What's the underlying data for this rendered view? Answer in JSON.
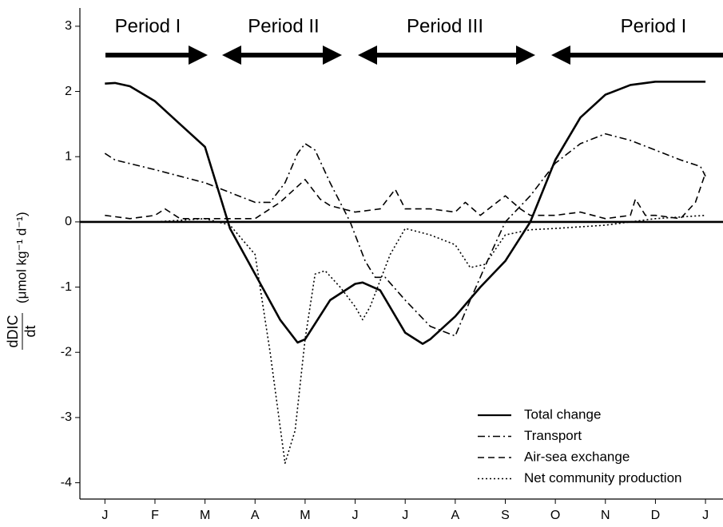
{
  "chart_data": {
    "type": "line",
    "annotations": [
      "Period I",
      "Period II",
      "Period III",
      "Period I"
    ],
    "ylabel_numerator": "dDIC",
    "ylabel_denominator": "dt",
    "ylabel_units": "(μmol kg⁻¹ d⁻¹)",
    "xlim": [
      -0.5,
      12.35
    ],
    "ylim": [
      -4.25,
      3.28
    ],
    "xticks": [
      {
        "value": 0,
        "label": "J"
      },
      {
        "value": 1,
        "label": "F"
      },
      {
        "value": 2,
        "label": "M"
      },
      {
        "value": 3,
        "label": "A"
      },
      {
        "value": 4,
        "label": "M"
      },
      {
        "value": 5,
        "label": "J"
      },
      {
        "value": 6,
        "label": "J"
      },
      {
        "value": 7,
        "label": "A"
      },
      {
        "value": 8,
        "label": "S"
      },
      {
        "value": 9,
        "label": "O"
      },
      {
        "value": 10,
        "label": "N"
      },
      {
        "value": 11,
        "label": "D"
      },
      {
        "value": 12,
        "label": "J"
      }
    ],
    "yticks": [
      -4,
      -3,
      -2,
      -1,
      0,
      1,
      2,
      3
    ],
    "hline": 0,
    "legend": "lower right",
    "series": [
      {
        "name": "Total change",
        "color": "#000000",
        "dash": "solid",
        "x": [
          0,
          0.2,
          0.5,
          1,
          1.5,
          2,
          2.5,
          3,
          3.5,
          3.85,
          4,
          4.5,
          5,
          5.15,
          5.5,
          6,
          6.35,
          6.5,
          7,
          7.5,
          8,
          8.5,
          9,
          9.5,
          10,
          10.5,
          11,
          11.5,
          12
        ],
        "values": [
          2.12,
          2.13,
          2.08,
          1.85,
          1.5,
          1.15,
          -0.1,
          -0.8,
          -1.5,
          -1.85,
          -1.8,
          -1.2,
          -0.95,
          -0.93,
          -1.05,
          -1.7,
          -1.87,
          -1.8,
          -1.45,
          -1.0,
          -0.6,
          0.0,
          0.95,
          1.6,
          1.95,
          2.1,
          2.15,
          2.15,
          2.15
        ]
      },
      {
        "name": "Transport",
        "color": "#000000",
        "dash": "dashdot",
        "x": [
          0,
          0.2,
          1,
          2,
          2.5,
          3,
          3.3,
          3.6,
          3.85,
          4,
          4.2,
          4.5,
          4.9,
          5.2,
          5.4,
          5.6,
          6,
          6.5,
          7,
          7.3,
          7.7,
          8,
          8.5,
          9,
          9.5,
          10,
          10.5,
          11,
          11.5,
          11.9,
          12
        ],
        "values": [
          1.05,
          0.95,
          0.8,
          0.6,
          0.45,
          0.3,
          0.3,
          0.6,
          1.05,
          1.2,
          1.1,
          0.6,
          0.0,
          -0.6,
          -0.85,
          -0.85,
          -1.2,
          -1.6,
          -1.75,
          -1.2,
          -0.5,
          0.0,
          0.4,
          0.9,
          1.2,
          1.35,
          1.25,
          1.1,
          0.95,
          0.85,
          0.7
        ]
      },
      {
        "name": "Air-sea exchange",
        "color": "#000000",
        "dash": "dashed",
        "x": [
          0,
          0.5,
          1,
          1.2,
          1.5,
          2,
          2.5,
          3,
          3.5,
          4,
          4.3,
          4.5,
          5,
          5.5,
          5.8,
          6,
          6.5,
          7,
          7.2,
          7.5,
          8,
          8.3,
          8.5,
          9,
          9.5,
          10,
          10.5,
          10.6,
          10.8,
          11,
          11.5,
          11.8,
          12
        ],
        "values": [
          0.1,
          0.05,
          0.1,
          0.2,
          0.05,
          0.05,
          0.05,
          0.05,
          0.3,
          0.65,
          0.35,
          0.25,
          0.15,
          0.2,
          0.5,
          0.2,
          0.2,
          0.15,
          0.3,
          0.1,
          0.4,
          0.2,
          0.1,
          0.1,
          0.15,
          0.05,
          0.1,
          0.35,
          0.1,
          0.1,
          0.05,
          0.3,
          0.75
        ]
      },
      {
        "name": "Net community production",
        "color": "#000000",
        "dash": "dotted",
        "x": [
          0,
          1,
          2,
          2.5,
          3,
          3.3,
          3.6,
          3.8,
          4,
          4.2,
          4.4,
          4.7,
          5,
          5.15,
          5.3,
          5.7,
          6,
          6.5,
          7,
          7.3,
          7.6,
          8,
          8.5,
          9,
          10,
          10.5,
          11,
          12
        ],
        "values": [
          0,
          0,
          0.05,
          -0.05,
          -0.5,
          -2.0,
          -3.7,
          -3.2,
          -1.8,
          -0.8,
          -0.75,
          -1.0,
          -1.3,
          -1.5,
          -1.3,
          -0.5,
          -0.1,
          -0.2,
          -0.35,
          -0.7,
          -0.65,
          -0.2,
          -0.12,
          -0.1,
          -0.05,
          0,
          0.05,
          0.1
        ]
      }
    ]
  }
}
